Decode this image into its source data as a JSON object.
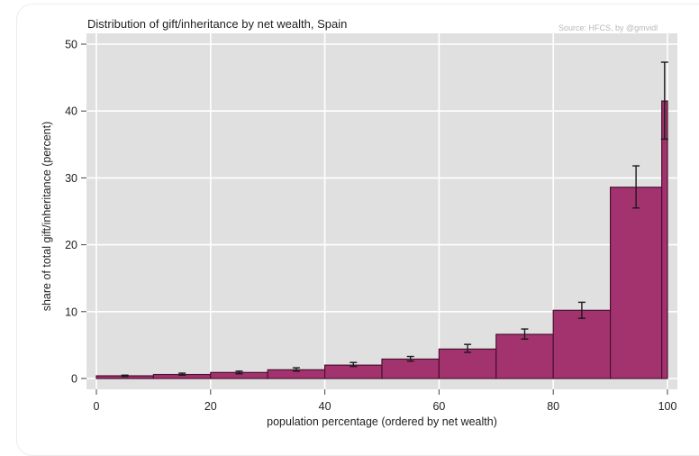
{
  "chart_data": {
    "type": "bar",
    "title": "Distribution of gift/inheritance by net wealth, Spain",
    "source_note": "Source: HFCS, by @gmvidl",
    "xlabel": "population percentage (ordered by net wealth)",
    "ylabel": "share of total gift/inheritance (percent)",
    "xlim": [
      0,
      100
    ],
    "ylim": [
      0,
      50
    ],
    "x_ticks": [
      0,
      20,
      40,
      60,
      80,
      100
    ],
    "y_ticks": [
      0,
      10,
      20,
      30,
      40,
      50
    ],
    "grid": true,
    "legend": null,
    "bar_color": "#a3336f",
    "bar_edge_color": "#4a1030",
    "background_color": "#e0e0e0",
    "bins": [
      {
        "from": 0,
        "to": 10,
        "value": 0.4,
        "ci_low": 0.3,
        "ci_high": 0.5
      },
      {
        "from": 10,
        "to": 20,
        "value": 0.6,
        "ci_low": 0.5,
        "ci_high": 0.8
      },
      {
        "from": 20,
        "to": 30,
        "value": 0.9,
        "ci_low": 0.7,
        "ci_high": 1.1
      },
      {
        "from": 30,
        "to": 40,
        "value": 1.3,
        "ci_low": 1.1,
        "ci_high": 1.6
      },
      {
        "from": 40,
        "to": 50,
        "value": 2.0,
        "ci_low": 1.8,
        "ci_high": 2.4
      },
      {
        "from": 50,
        "to": 60,
        "value": 2.9,
        "ci_low": 2.6,
        "ci_high": 3.3
      },
      {
        "from": 60,
        "to": 70,
        "value": 4.4,
        "ci_low": 3.9,
        "ci_high": 5.1
      },
      {
        "from": 70,
        "to": 80,
        "value": 6.6,
        "ci_low": 5.9,
        "ci_high": 7.4
      },
      {
        "from": 80,
        "to": 90,
        "value": 10.2,
        "ci_low": 9.0,
        "ci_high": 11.4
      },
      {
        "from": 90,
        "to": 99,
        "value": 28.6,
        "ci_low": 25.5,
        "ci_high": 31.8
      },
      {
        "from": 99,
        "to": 100,
        "value": 41.5,
        "ci_low": 35.8,
        "ci_high": 47.3
      }
    ]
  }
}
